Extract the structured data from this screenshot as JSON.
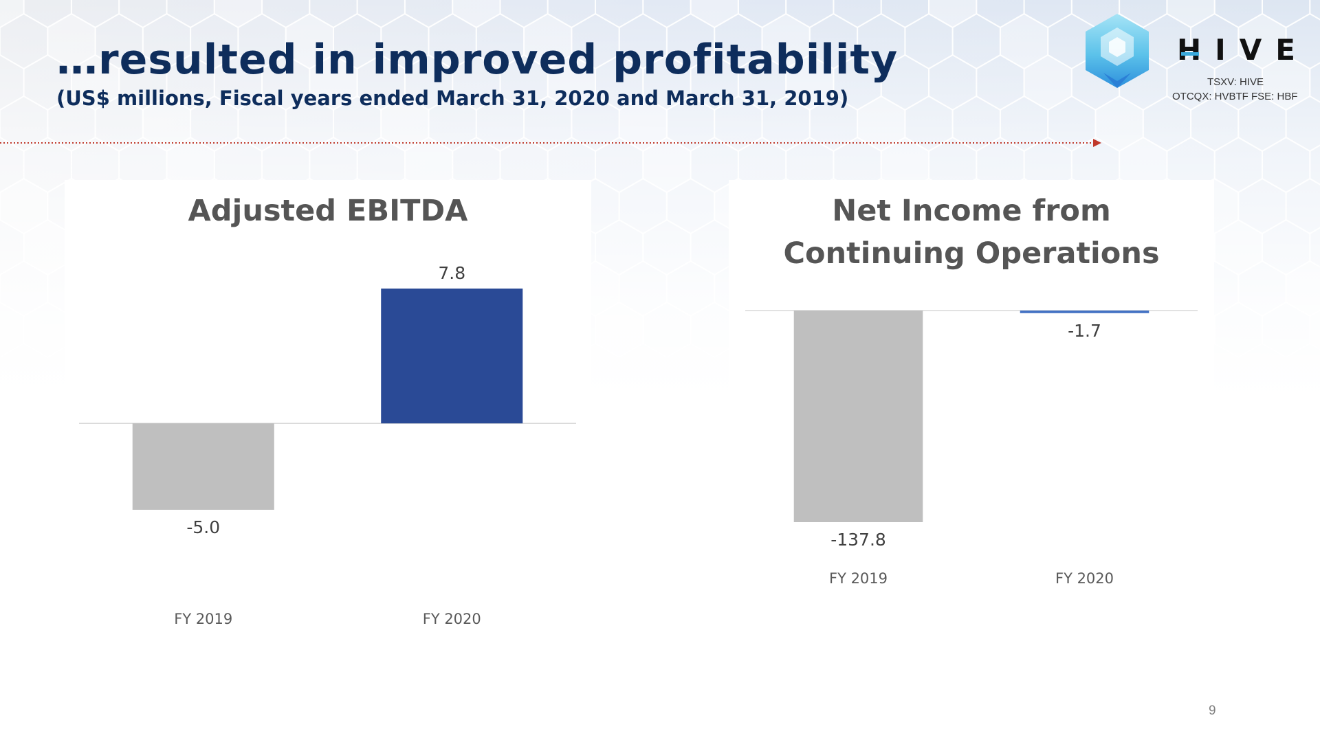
{
  "header": {
    "title": "…resulted in improved profitability",
    "subtitle": "(US$ millions, Fiscal years ended March 31, 2020 and March 31, 2019)"
  },
  "logo": {
    "word": "HIVE",
    "ticker_line1": "TSXV: HIVE",
    "ticker_line2": "OTCQX: HVBTF FSE: HBF"
  },
  "page_number": "9",
  "colors": {
    "title_navy": "#0e2d5c",
    "bar_gray": "#bfbfbf",
    "bar_navy": "#2a4a96",
    "bar_blue": "#4472c4",
    "divider_red": "#c0392b",
    "logo_blue": "#39a9dc"
  },
  "chart_data": [
    {
      "type": "bar",
      "title": "Adjusted EBITDA",
      "categories": [
        "FY 2019",
        "FY 2020"
      ],
      "values": [
        -5.0,
        7.8
      ],
      "data_labels": [
        "-5.0",
        "7.8"
      ],
      "bar_colors": [
        "#bfbfbf",
        "#2a4a96"
      ],
      "ylim": [
        -5.0,
        7.8
      ],
      "grid": false,
      "legend": "none"
    },
    {
      "type": "bar",
      "title": "Net Income from Continuing Operations",
      "categories": [
        "FY 2019",
        "FY 2020"
      ],
      "values": [
        -137.8,
        -1.7
      ],
      "data_labels": [
        "-137.8",
        "-1.7"
      ],
      "bar_colors": [
        "#bfbfbf",
        "#4472c4"
      ],
      "ylim": [
        -137.8,
        0
      ],
      "grid": false,
      "legend": "none"
    }
  ]
}
